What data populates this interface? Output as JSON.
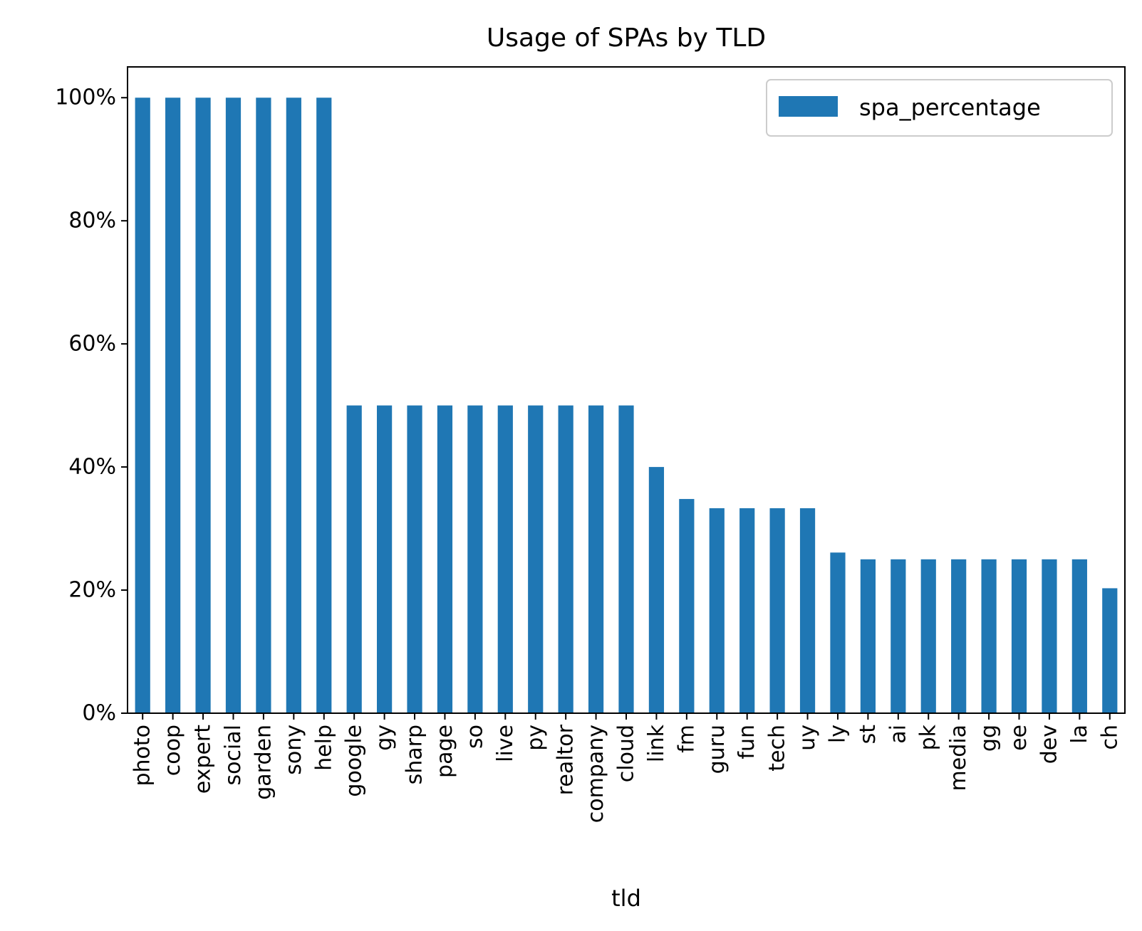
{
  "chart_data": {
    "type": "bar",
    "title": "Usage of SPAs by TLD",
    "xlabel": "tld",
    "ylabel": "",
    "categories": [
      "photo",
      "coop",
      "expert",
      "social",
      "garden",
      "sony",
      "help",
      "google",
      "gy",
      "sharp",
      "page",
      "so",
      "live",
      "py",
      "realtor",
      "company",
      "cloud",
      "link",
      "fm",
      "guru",
      "fun",
      "tech",
      "uy",
      "ly",
      "st",
      "ai",
      "pk",
      "media",
      "gg",
      "ee",
      "dev",
      "la",
      "ch"
    ],
    "series": [
      {
        "name": "spa_percentage",
        "values": [
          100,
          100,
          100,
          100,
          100,
          100,
          100,
          50,
          50,
          50,
          50,
          50,
          50,
          50,
          50,
          50,
          50,
          40,
          34.8,
          33.3,
          33.3,
          33.3,
          33.3,
          26.1,
          25,
          25,
          25,
          25,
          25,
          25,
          25,
          25,
          20.3
        ]
      }
    ],
    "ylim": [
      0,
      105
    ],
    "yticks": [
      0,
      20,
      40,
      60,
      80,
      100
    ],
    "ytick_labels": [
      "0%",
      "20%",
      "40%",
      "60%",
      "80%",
      "100%"
    ],
    "grid": false,
    "legend_position": "top-right",
    "colors": {
      "bar": "#1f77b4",
      "axes": "#000000"
    }
  }
}
